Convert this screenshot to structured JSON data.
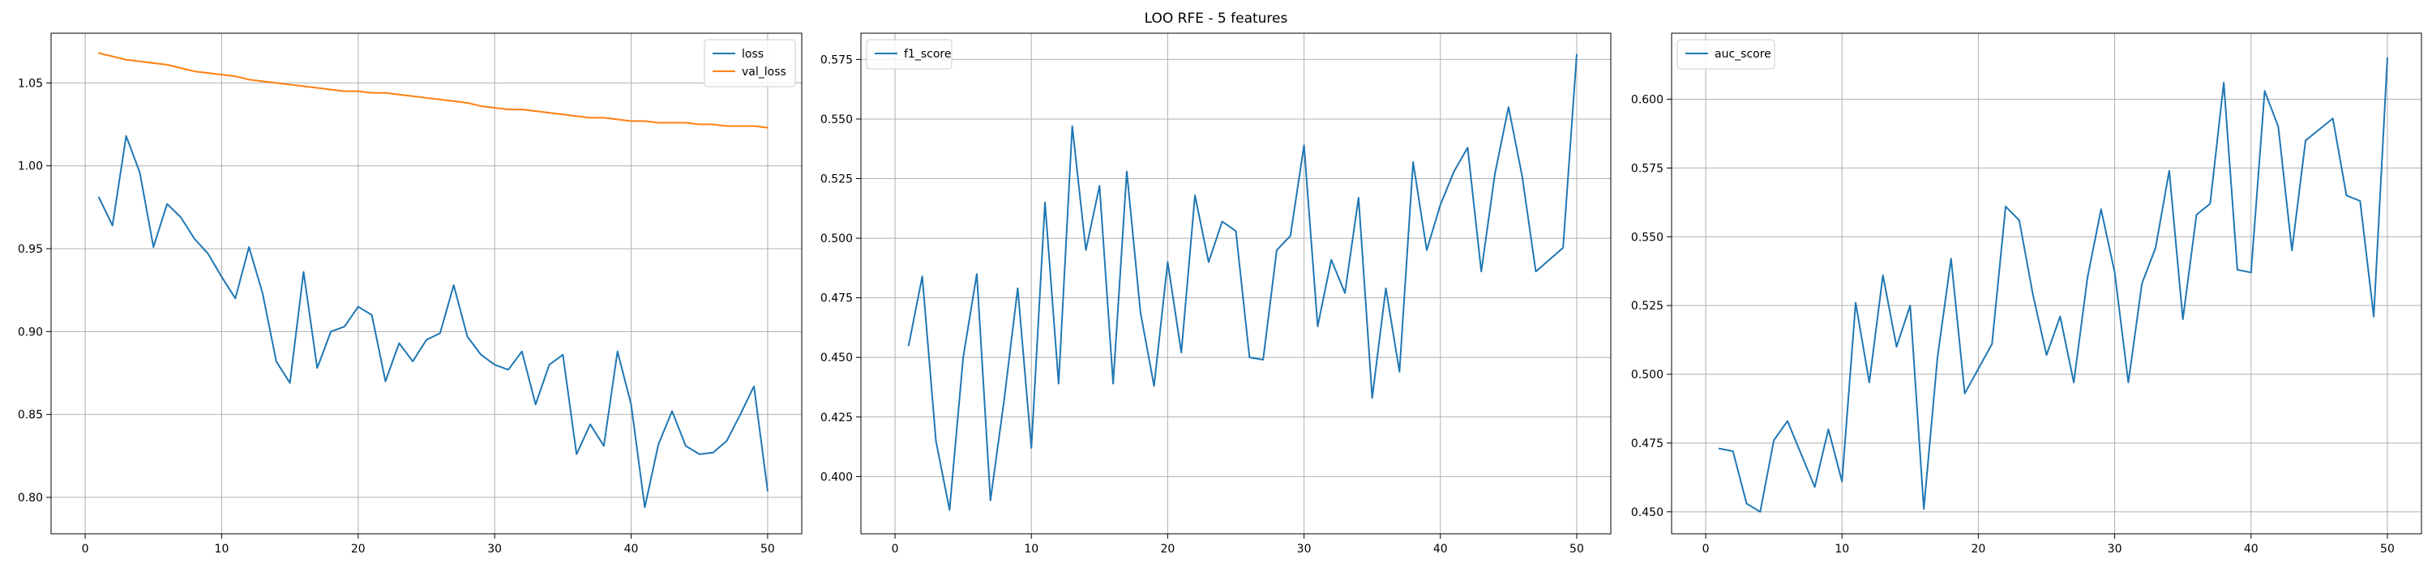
{
  "figure": {
    "suptitle": "LOO RFE - 5 features"
  },
  "chart_data": [
    {
      "type": "line",
      "xlim": [
        -2.5,
        52.5
      ],
      "ylim": [
        0.778,
        1.08
      ],
      "xticks": [
        0,
        10,
        20,
        30,
        40,
        50
      ],
      "yticks": [
        0.8,
        0.85,
        0.9,
        0.95,
        1.0,
        1.05
      ],
      "ytick_labels": [
        "0.80",
        "0.85",
        "0.90",
        "0.95",
        "1.00",
        "1.05"
      ],
      "grid": true,
      "legend_position": "upper right",
      "x": [
        1,
        2,
        3,
        4,
        5,
        6,
        7,
        8,
        9,
        10,
        11,
        12,
        13,
        14,
        15,
        16,
        17,
        18,
        19,
        20,
        21,
        22,
        23,
        24,
        25,
        26,
        27,
        28,
        29,
        30,
        31,
        32,
        33,
        34,
        35,
        36,
        37,
        38,
        39,
        40,
        41,
        42,
        43,
        44,
        45,
        46,
        47,
        48,
        49,
        50
      ],
      "series": [
        {
          "name": "loss",
          "color": "#1f77b4",
          "values": [
            0.981,
            0.964,
            1.018,
            0.996,
            0.951,
            0.977,
            0.969,
            0.956,
            0.947,
            0.933,
            0.92,
            0.951,
            0.923,
            0.882,
            0.869,
            0.936,
            0.878,
            0.9,
            0.903,
            0.915,
            0.91,
            0.87,
            0.893,
            0.882,
            0.895,
            0.899,
            0.928,
            0.897,
            0.886,
            0.88,
            0.877,
            0.888,
            0.856,
            0.88,
            0.886,
            0.826,
            0.844,
            0.831,
            0.888,
            0.856,
            0.794,
            0.832,
            0.852,
            0.831,
            0.826,
            0.827,
            0.834,
            0.85,
            0.867,
            0.804
          ]
        },
        {
          "name": "val_loss",
          "color": "#ff7f0e",
          "values": [
            1.068,
            1.066,
            1.064,
            1.063,
            1.062,
            1.061,
            1.059,
            1.057,
            1.056,
            1.055,
            1.054,
            1.052,
            1.051,
            1.05,
            1.049,
            1.048,
            1.047,
            1.046,
            1.045,
            1.045,
            1.044,
            1.044,
            1.043,
            1.042,
            1.041,
            1.04,
            1.039,
            1.038,
            1.036,
            1.035,
            1.034,
            1.034,
            1.033,
            1.032,
            1.031,
            1.03,
            1.029,
            1.029,
            1.028,
            1.027,
            1.027,
            1.026,
            1.026,
            1.026,
            1.025,
            1.025,
            1.024,
            1.024,
            1.024,
            1.023
          ]
        }
      ]
    },
    {
      "type": "line",
      "xlim": [
        -2.5,
        52.5
      ],
      "ylim": [
        0.376,
        0.586
      ],
      "xticks": [
        0,
        10,
        20,
        30,
        40,
        50
      ],
      "yticks": [
        0.4,
        0.425,
        0.45,
        0.475,
        0.5,
        0.525,
        0.55,
        0.575
      ],
      "ytick_labels": [
        "0.400",
        "0.425",
        "0.450",
        "0.475",
        "0.500",
        "0.525",
        "0.550",
        "0.575"
      ],
      "grid": true,
      "legend_position": "upper left",
      "x": [
        1,
        2,
        3,
        4,
        5,
        6,
        7,
        8,
        9,
        10,
        11,
        12,
        13,
        14,
        15,
        16,
        17,
        18,
        19,
        20,
        21,
        22,
        23,
        24,
        25,
        26,
        27,
        28,
        29,
        30,
        31,
        32,
        33,
        34,
        35,
        36,
        37,
        38,
        39,
        40,
        41,
        42,
        43,
        44,
        45,
        46,
        47,
        48,
        49,
        50
      ],
      "series": [
        {
          "name": "f1_score",
          "color": "#1f77b4",
          "values": [
            0.455,
            0.484,
            0.415,
            0.386,
            0.45,
            0.485,
            0.39,
            0.432,
            0.479,
            0.412,
            0.515,
            0.439,
            0.547,
            0.495,
            0.522,
            0.439,
            0.528,
            0.469,
            0.438,
            0.49,
            0.452,
            0.518,
            0.49,
            0.507,
            0.503,
            0.45,
            0.449,
            0.495,
            0.501,
            0.539,
            0.463,
            0.491,
            0.477,
            0.517,
            0.433,
            0.479,
            0.444,
            0.532,
            0.495,
            0.514,
            0.528,
            0.538,
            0.486,
            0.527,
            0.555,
            0.526,
            0.486,
            0.491,
            0.496,
            0.577
          ]
        }
      ]
    },
    {
      "type": "line",
      "xlim": [
        -2.5,
        52.5
      ],
      "ylim": [
        0.442,
        0.624
      ],
      "xticks": [
        0,
        10,
        20,
        30,
        40,
        50
      ],
      "yticks": [
        0.45,
        0.475,
        0.5,
        0.525,
        0.55,
        0.575,
        0.6
      ],
      "ytick_labels": [
        "0.450",
        "0.475",
        "0.500",
        "0.525",
        "0.550",
        "0.575",
        "0.600"
      ],
      "grid": true,
      "legend_position": "upper left",
      "x": [
        1,
        2,
        3,
        4,
        5,
        6,
        7,
        8,
        9,
        10,
        11,
        12,
        13,
        14,
        15,
        16,
        17,
        18,
        19,
        20,
        21,
        22,
        23,
        24,
        25,
        26,
        27,
        28,
        29,
        30,
        31,
        32,
        33,
        34,
        35,
        36,
        37,
        38,
        39,
        40,
        41,
        42,
        43,
        44,
        45,
        46,
        47,
        48,
        49,
        50
      ],
      "series": [
        {
          "name": "auc_score",
          "color": "#1f77b4",
          "values": [
            0.473,
            0.472,
            0.453,
            0.45,
            0.476,
            0.483,
            0.471,
            0.459,
            0.48,
            0.461,
            0.526,
            0.497,
            0.536,
            0.51,
            0.525,
            0.451,
            0.506,
            0.542,
            0.493,
            0.502,
            0.511,
            0.561,
            0.556,
            0.529,
            0.507,
            0.521,
            0.497,
            0.535,
            0.56,
            0.537,
            0.497,
            0.533,
            0.546,
            0.574,
            0.52,
            0.558,
            0.562,
            0.606,
            0.538,
            0.537,
            0.603,
            0.59,
            0.545,
            0.585,
            0.589,
            0.593,
            0.565,
            0.563,
            0.521,
            0.615
          ]
        }
      ]
    }
  ]
}
